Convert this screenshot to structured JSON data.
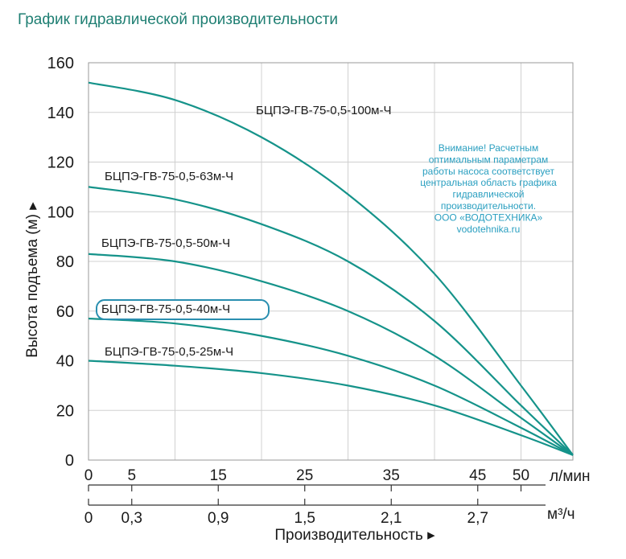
{
  "page_title": "График гидравлической производительности",
  "chart_data": {
    "type": "line",
    "ylabel": "Высота подъема (м) ▸",
    "xlabel": "Производительность ▸",
    "ylim": [
      0,
      160
    ],
    "yticks": [
      "0",
      "20",
      "40",
      "60",
      "80",
      "100",
      "120",
      "140",
      "160"
    ],
    "x_lpm": {
      "unit": "л/мин",
      "ticks": [
        "0",
        "5",
        "15",
        "25",
        "35",
        "45",
        "50"
      ]
    },
    "x_m3h": {
      "unit": "м³/ч",
      "ticks": [
        "0",
        "0,3",
        "0,9",
        "1,5",
        "2,1",
        "2,7"
      ]
    },
    "grid": true,
    "series": [
      {
        "name": "БЦПЭ-ГВ-75-0,5-100м-Ч",
        "x": [
          0,
          10,
          20,
          30,
          40,
          50,
          56
        ],
        "y": [
          152,
          145,
          130,
          107,
          75,
          30,
          2
        ]
      },
      {
        "name": "БЦПЭ-ГВ-75-0,5-63м-Ч",
        "x": [
          0,
          10,
          20,
          30,
          40,
          50,
          56
        ],
        "y": [
          110,
          105,
          95,
          80,
          56,
          22,
          2
        ]
      },
      {
        "name": "БЦПЭ-ГВ-75-0,5-50м-Ч",
        "x": [
          0,
          10,
          20,
          30,
          40,
          50,
          56
        ],
        "y": [
          83,
          80,
          72,
          60,
          42,
          17,
          2
        ]
      },
      {
        "name": "БЦПЭ-ГВ-75-0,5-40м-Ч",
        "highlighted": true,
        "x": [
          0,
          10,
          20,
          30,
          40,
          50,
          56
        ],
        "y": [
          57,
          55,
          50,
          42,
          30,
          13,
          2
        ]
      },
      {
        "name": "БЦПЭ-ГВ-75-0,5-25м-Ч",
        "x": [
          0,
          10,
          20,
          30,
          40,
          50,
          56
        ],
        "y": [
          40,
          38,
          35,
          30,
          22,
          10,
          2
        ]
      }
    ],
    "annotation": [
      "Внимание! Расчетным",
      "оптимальным параметрам",
      "работы насоса соответствует",
      "центральная область графика",
      "гидравлической",
      "производительности.",
      "ООО «ВОДОТЕХНИКА»",
      "vodotehnika.ru"
    ],
    "colors": {
      "curve": "#15938a",
      "highlight_box": "#2a8fb0",
      "grid": "#d0d0d0",
      "axis": "#333333",
      "note": "#2a9fc0"
    }
  }
}
